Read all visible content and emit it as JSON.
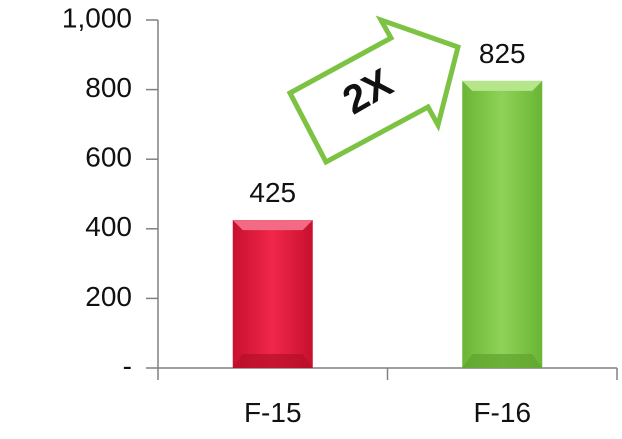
{
  "chart_data": {
    "type": "bar",
    "categories": [
      "F-15",
      "F-16"
    ],
    "values": [
      425,
      825
    ],
    "value_labels": [
      "425",
      "825"
    ],
    "ylim": [
      0,
      1000
    ],
    "yticks": [
      0,
      200,
      400,
      600,
      800,
      1000
    ],
    "ytick_labels": [
      "-",
      "200",
      "400",
      "600",
      "800",
      "1,000"
    ],
    "grid": false,
    "legend": "none",
    "colors": [
      "#e0203c",
      "#7cc243"
    ],
    "annotation": {
      "text": "2X",
      "shape": "arrow",
      "fill": "#ffffff",
      "stroke": "#7cc243"
    }
  }
}
